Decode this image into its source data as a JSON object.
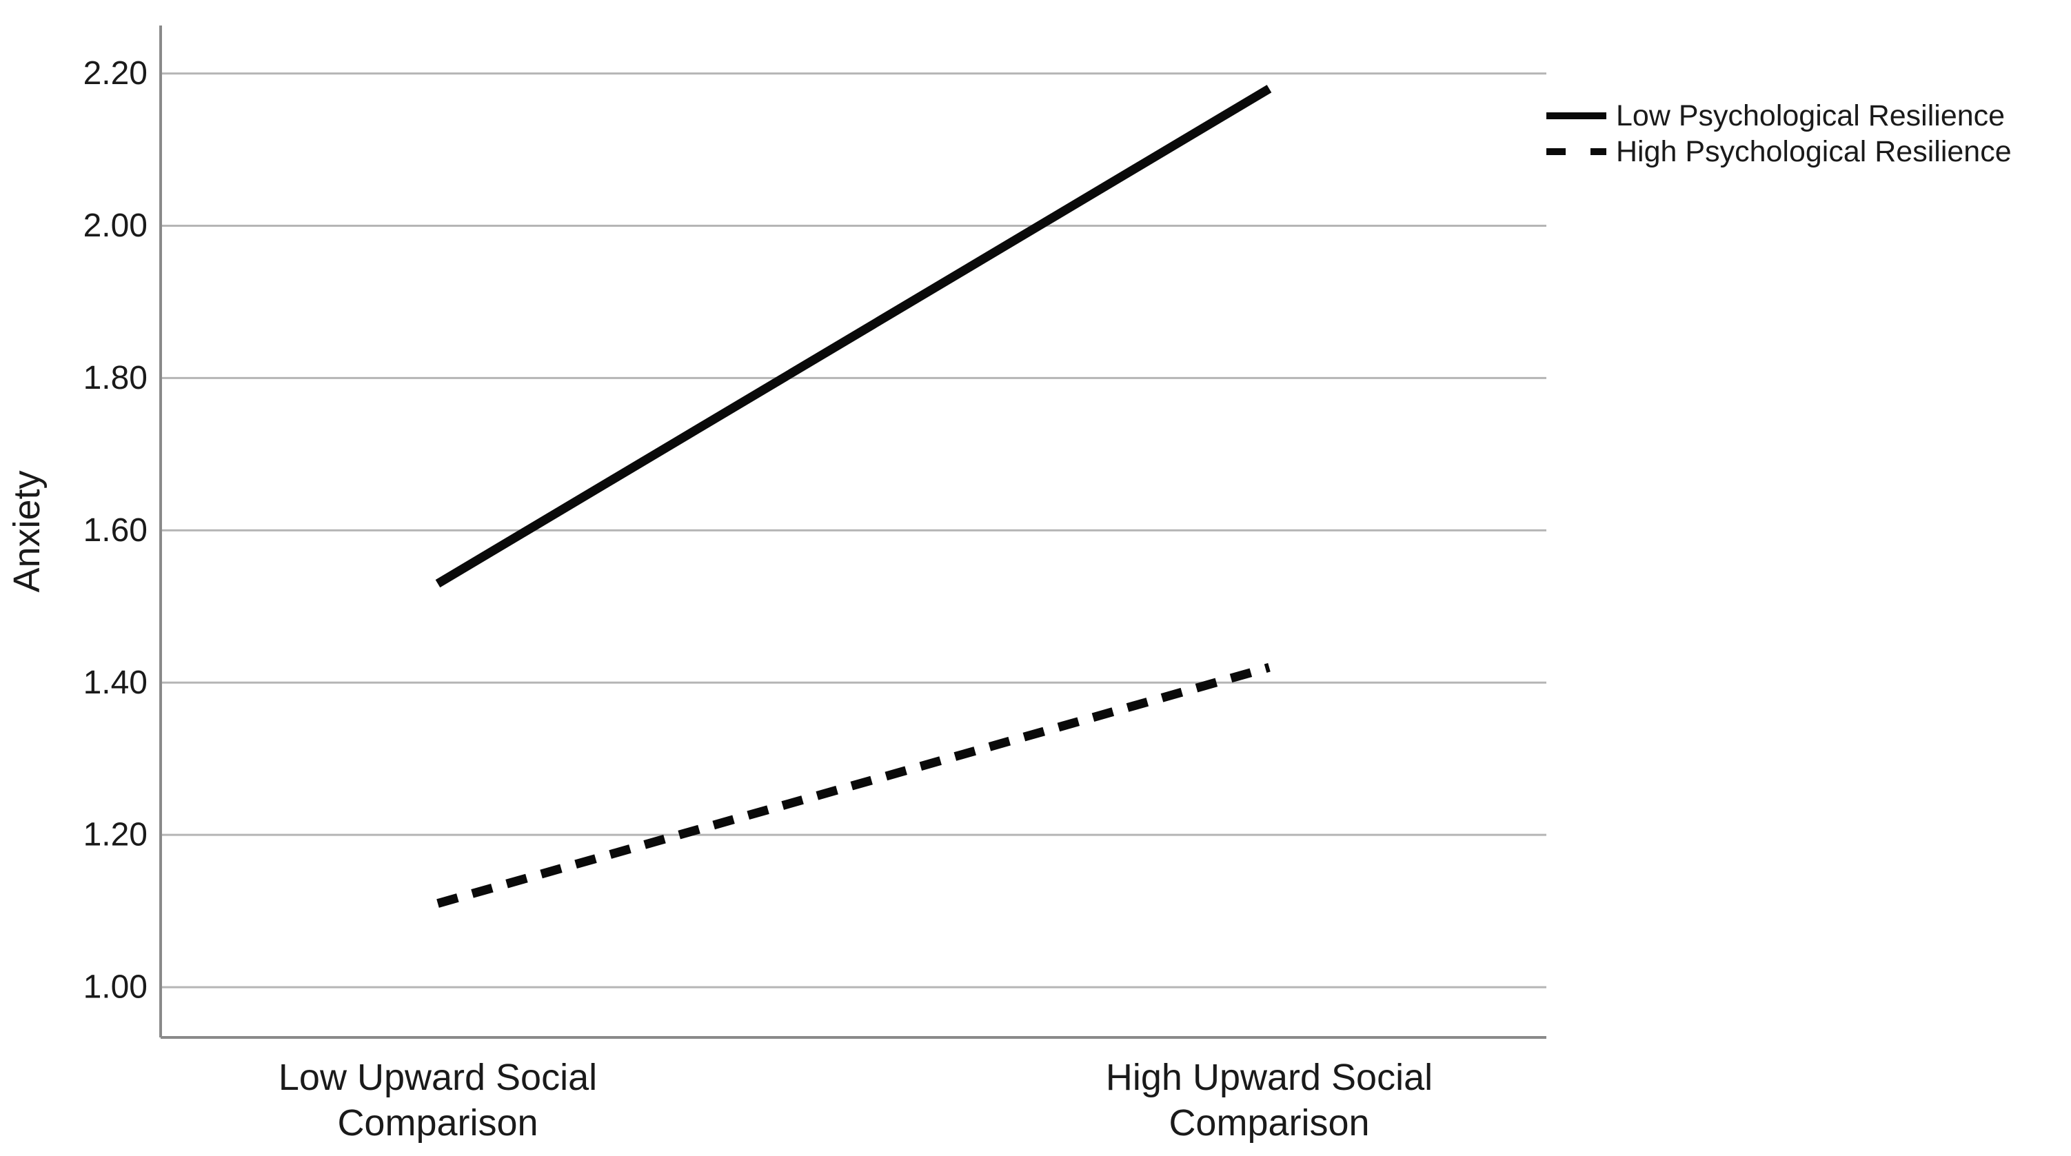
{
  "chart_data": {
    "type": "line",
    "title": "",
    "xlabel": "",
    "ylabel": "Anxiety",
    "categories": [
      [
        "Low Upward Social",
        "Comparison"
      ],
      [
        "High Upward Social",
        "Comparison"
      ]
    ],
    "series": [
      {
        "name": "Low Psychological Resilience",
        "line_style": "solid",
        "values": [
          1.53,
          2.18
        ]
      },
      {
        "name": "High Psychological Resilience",
        "line_style": "dashed",
        "values": [
          1.11,
          1.42
        ]
      }
    ],
    "y_ticks": [
      "1.00",
      "1.20",
      "1.40",
      "1.60",
      "1.80",
      "2.00",
      "2.20"
    ],
    "ylim": [
      0.934,
      2.263
    ],
    "grid": true,
    "legend_position": "top-right",
    "colors": {
      "series_line": "#0a0a0a",
      "gridline": "#b5b5b5",
      "axis_line": "#8a8a8a",
      "text": "#1a1a1a",
      "background": "#ffffff"
    }
  }
}
